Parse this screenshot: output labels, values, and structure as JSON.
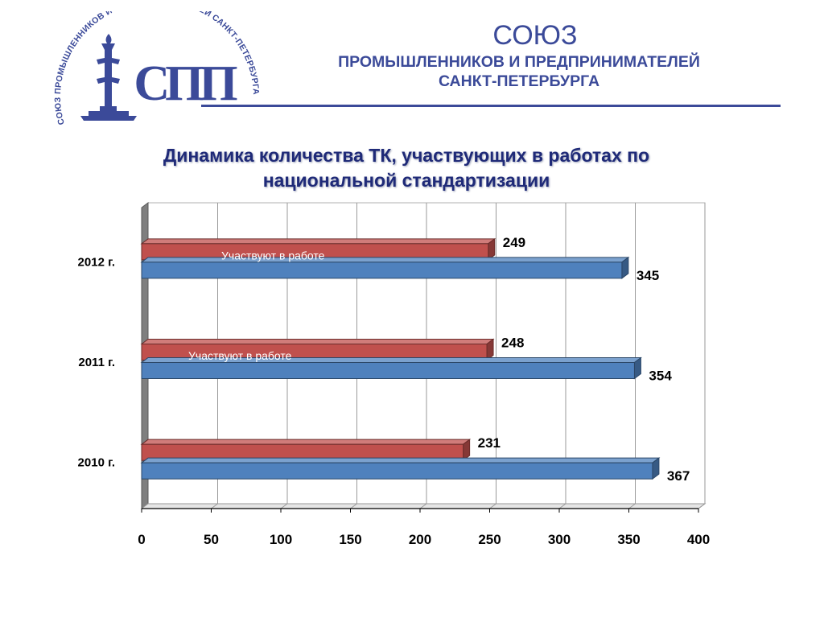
{
  "header": {
    "logo_ring_text": "СОЮЗ ПРОМЫШЛЕННИКОВ И ПРЕДПРИНИМАТЕЛЕЙ САНКТ-ПЕТЕРБУРГА",
    "logo_monogram": "СПП",
    "org_name": "СОЮЗ",
    "org_line1": "ПРОМЫШЛЕННИКОВ И ПРЕДПРИНИМАТЕЛЕЙ",
    "org_line2": "САНКТ-ПЕТЕРБУРГА"
  },
  "colors": {
    "brand": "#3b4a99",
    "title": "#1f2a78",
    "series_red": "#c0504d",
    "series_blue": "#4f81bd"
  },
  "chart_data": {
    "type": "bar",
    "orientation": "horizontal",
    "title_line1": "Динамика количества ТК, участвующих в работах по",
    "title_line2": "национальной стандартизации",
    "categories": [
      "2012 г.",
      "2011 г.",
      "2010 г."
    ],
    "series": [
      {
        "values": [
          249,
          248,
          231
        ],
        "color": "#c0504d"
      },
      {
        "values": [
          345,
          354,
          367
        ],
        "color": "#4f81bd"
      }
    ],
    "annotations": [
      {
        "category": "2012 г.",
        "text": "Участвуют в работе"
      },
      {
        "category": "2011 г.",
        "text": "Участвуют в работе"
      }
    ],
    "x_ticks": [
      "0",
      "50",
      "100",
      "150",
      "200",
      "250",
      "300",
      "350",
      "400"
    ],
    "xlim": [
      0,
      400
    ],
    "grid": true,
    "style": "3d"
  }
}
